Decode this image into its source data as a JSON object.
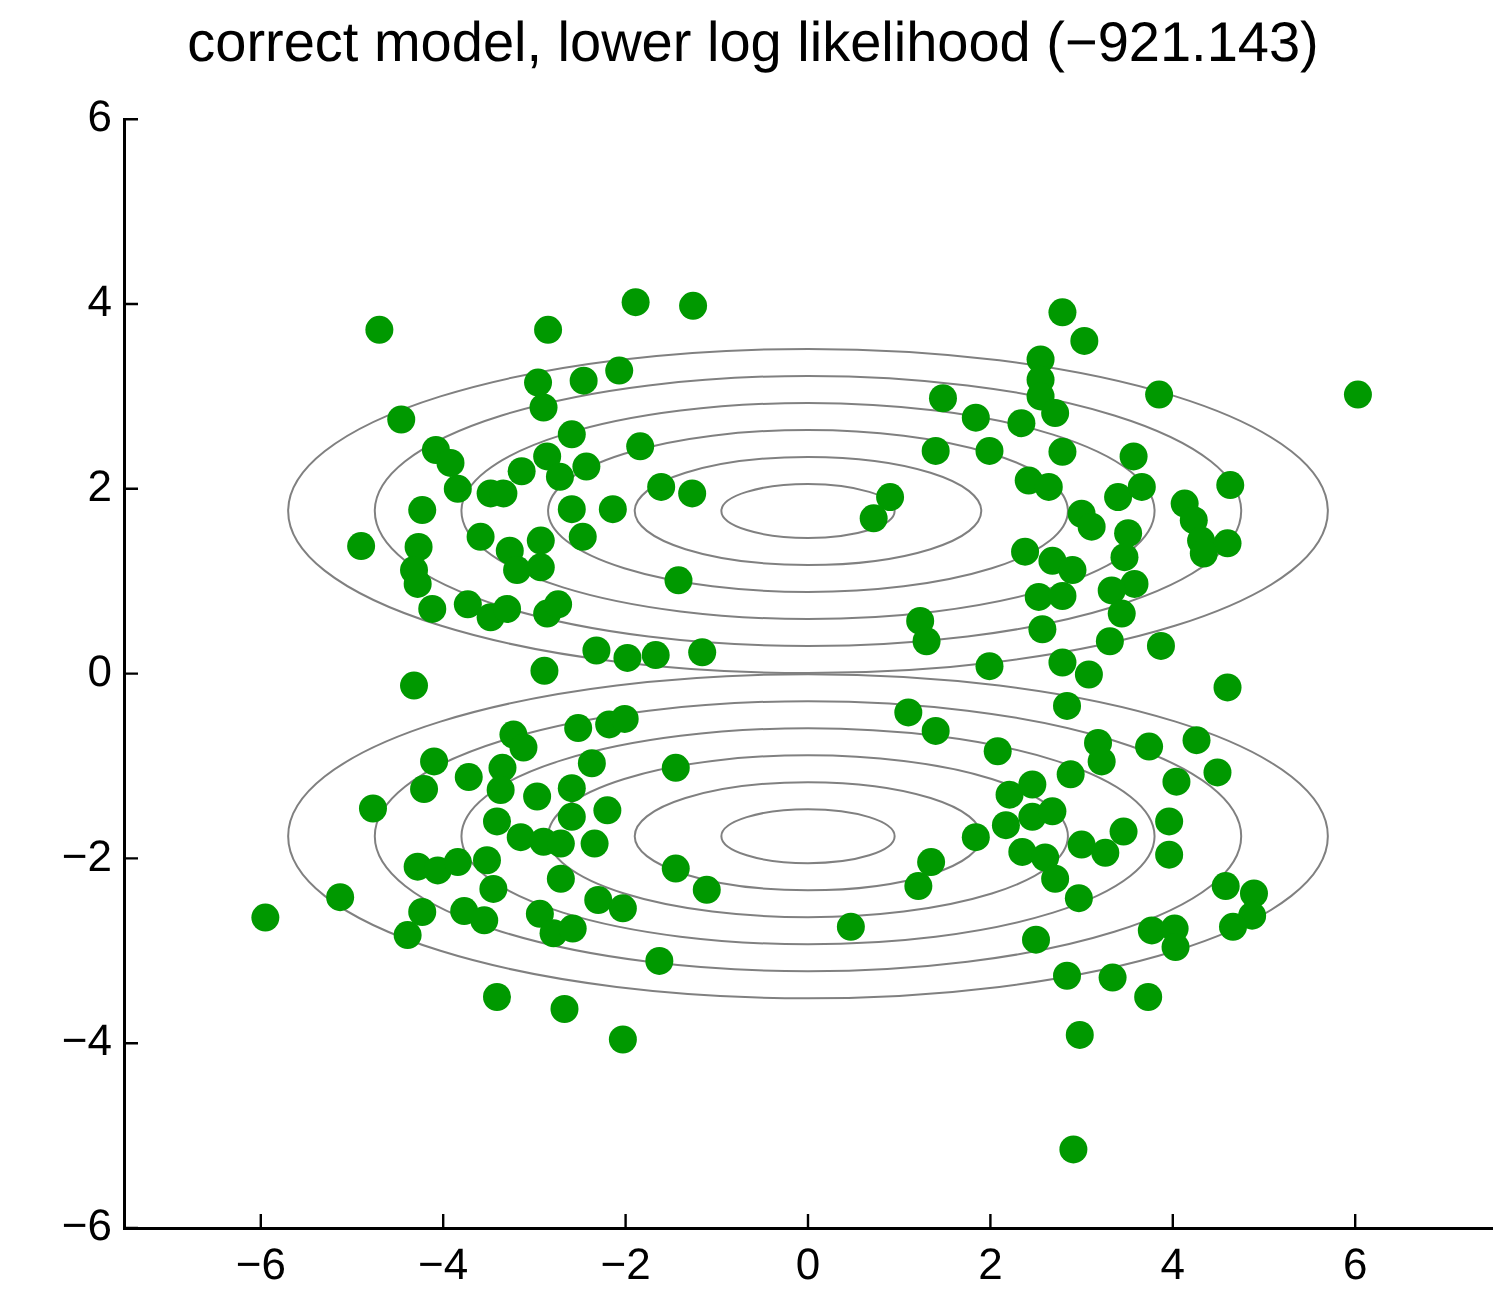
{
  "chart_data": {
    "type": "scatter",
    "title": "correct model, lower log likelihood (−921.143)",
    "xlim": [
      -7.5,
      7.5
    ],
    "ylim": [
      -6,
      6
    ],
    "xticks": [
      -6,
      -4,
      -2,
      0,
      2,
      4,
      6
    ],
    "yticks": [
      -6,
      -4,
      -2,
      0,
      2,
      4,
      6
    ],
    "grid": false,
    "legend": false,
    "marker": "circle",
    "series": [
      {
        "type": "scatter",
        "color": "#009900",
        "x": [
          -1.89,
          -1.26,
          -4.7,
          -2.85,
          -2.96,
          -2.9,
          -2.46,
          -2.07,
          -4.46,
          -4.08,
          -3.92,
          -3.84,
          -3.48,
          -3.34,
          -4.23,
          -4.9,
          -4.27,
          -4.32,
          -4.28,
          -4.12,
          -3.73,
          -3.48,
          -3.3,
          -3.59,
          -3.27,
          -3.19,
          -2.93,
          -2.93,
          -2.86,
          -2.74,
          -3.14,
          -2.86,
          -2.59,
          -2.43,
          -2.72,
          -2.59,
          -2.47,
          -2.14,
          -1.84,
          -1.61,
          -1.27,
          -1.42,
          -2.32,
          -1.98,
          -1.67,
          -1.16,
          -2.89,
          -4.32,
          2.79,
          3.03,
          2.55,
          2.55,
          2.55,
          2.71,
          3.85,
          6.03,
          1.48,
          1.84,
          2.34,
          1.4,
          1.99,
          2.79,
          3.57,
          2.42,
          2.64,
          0.9,
          0.72,
          3.4,
          3.66,
          3.0,
          3.11,
          3.51,
          4.63,
          4.13,
          4.23,
          4.31,
          4.6,
          4.34,
          2.38,
          2.68,
          2.9,
          3.47,
          3.58,
          2.53,
          2.79,
          3.33,
          3.44,
          1.23,
          1.3,
          2.57,
          3.31,
          3.87,
          1.99,
          2.79,
          3.08,
          4.6,
          -4.1,
          -3.72,
          -4.21,
          -4.77,
          -3.23,
          -3.12,
          -2.52,
          -2.18,
          -2.01,
          -2.37,
          -3.35,
          -3.37,
          -2.97,
          -2.59,
          -2.59,
          -2.2,
          -3.41,
          -3.15,
          -2.9,
          -2.71,
          -2.34,
          -1.45,
          -4.28,
          -4.06,
          -3.84,
          -3.52,
          -3.45,
          -2.71,
          -1.45,
          -1.11,
          -5.13,
          -5.95,
          -4.23,
          -4.39,
          -3.77,
          -3.55,
          -2.94,
          -2.79,
          -2.58,
          -2.3,
          -2.03,
          -1.63,
          -3.41,
          -2.67,
          -2.03,
          2.84,
          1.1,
          1.4,
          2.08,
          3.18,
          3.22,
          3.74,
          4.26,
          4.49,
          4.04,
          2.88,
          2.21,
          2.46,
          2.46,
          2.68,
          2.17,
          1.84,
          2.35,
          2.6,
          3.0,
          3.26,
          3.46,
          3.96,
          3.96,
          1.35,
          1.21,
          2.71,
          2.97,
          0.47,
          2.5,
          3.77,
          4.02,
          4.03,
          4.58,
          4.89,
          4.87,
          4.66,
          2.84,
          3.34,
          3.73,
          2.98,
          2.91
        ],
        "values": [
          4.02,
          3.98,
          3.72,
          3.72,
          3.15,
          2.88,
          3.17,
          3.28,
          2.75,
          2.42,
          2.28,
          2.0,
          1.95,
          1.95,
          1.77,
          1.38,
          1.37,
          1.12,
          0.97,
          0.7,
          0.75,
          0.61,
          0.7,
          1.48,
          1.33,
          1.12,
          1.44,
          1.15,
          0.65,
          0.75,
          2.19,
          2.35,
          2.59,
          2.24,
          2.13,
          1.78,
          1.48,
          1.78,
          2.46,
          2.02,
          1.95,
          1.01,
          0.25,
          0.17,
          0.2,
          0.23,
          0.03,
          -0.13,
          3.91,
          3.6,
          3.4,
          3.18,
          3.0,
          2.82,
          3.02,
          3.02,
          2.98,
          2.77,
          2.71,
          2.41,
          2.41,
          2.4,
          2.35,
          2.09,
          2.02,
          1.91,
          1.68,
          1.91,
          2.02,
          1.73,
          1.59,
          1.52,
          2.04,
          1.84,
          1.66,
          1.44,
          1.41,
          1.3,
          1.32,
          1.22,
          1.12,
          1.26,
          0.97,
          0.83,
          0.84,
          0.9,
          0.65,
          0.57,
          0.35,
          0.48,
          0.35,
          0.3,
          0.08,
          0.12,
          -0.01,
          -0.15,
          -0.95,
          -1.12,
          -1.25,
          -1.46,
          -0.66,
          -0.8,
          -0.59,
          -0.55,
          -0.49,
          -0.97,
          -1.02,
          -1.26,
          -1.33,
          -1.24,
          -1.55,
          -1.48,
          -1.6,
          -1.77,
          -1.82,
          -1.84,
          -1.84,
          -1.02,
          -2.09,
          -2.13,
          -2.04,
          -2.02,
          -2.33,
          -2.22,
          -2.11,
          -2.34,
          -2.42,
          -2.64,
          -2.58,
          -2.83,
          -2.57,
          -2.67,
          -2.6,
          -2.81,
          -2.76,
          -2.45,
          -2.54,
          -3.11,
          -3.5,
          -3.63,
          -3.96,
          -0.35,
          -0.42,
          -0.62,
          -0.84,
          -0.75,
          -0.95,
          -0.79,
          -0.72,
          -1.07,
          -1.17,
          -1.09,
          -1.31,
          -1.2,
          -1.55,
          -1.49,
          -1.64,
          -1.77,
          -1.93,
          -1.99,
          -1.85,
          -1.94,
          -1.71,
          -1.6,
          -1.96,
          -2.04,
          -2.3,
          -2.22,
          -2.43,
          -2.74,
          -2.88,
          -2.78,
          -2.76,
          -2.96,
          -2.3,
          -2.38,
          -2.62,
          -2.74,
          -3.27,
          -3.29,
          -3.5,
          -3.91,
          -5.15
        ]
      }
    ]
  }
}
